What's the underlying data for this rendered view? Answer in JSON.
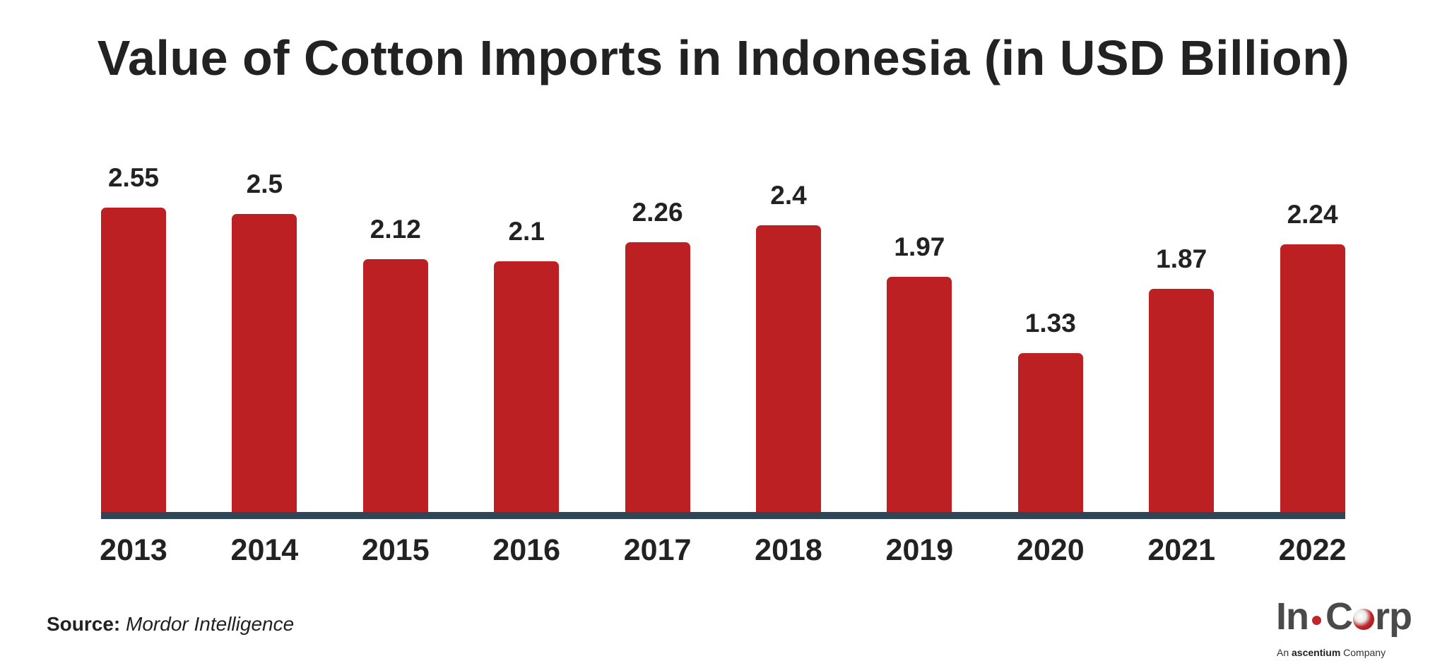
{
  "chart_data": {
    "type": "bar",
    "title": "Value of Cotton Imports in Indonesia (in USD Billion)",
    "xlabel": "",
    "ylabel": "",
    "categories": [
      "2013",
      "2014",
      "2015",
      "2016",
      "2017",
      "2018",
      "2019",
      "2020",
      "2021",
      "2022"
    ],
    "values": [
      2.55,
      2.5,
      2.12,
      2.1,
      2.26,
      2.4,
      1.97,
      1.33,
      1.87,
      2.24
    ],
    "value_labels": [
      "2.55",
      "2.5",
      "2.12",
      "2.1",
      "2.26",
      "2.4",
      "1.97",
      "1.33",
      "1.87",
      "2.24"
    ],
    "ylim": [
      0,
      2.6
    ],
    "grid": false,
    "legend": "none",
    "y_axis_visible": false,
    "data_labels": "above bars"
  },
  "colors": {
    "bar": "#BC2023",
    "axis": "#2F4558",
    "text": "#222222"
  },
  "footer": {
    "source_label": "Source:",
    "source_value": "Mordor Intelligence"
  },
  "logo": {
    "part1": "In",
    "part2": "C",
    "part3": "rp",
    "tagline_prefix": "An",
    "tagline_brand": "ascentium",
    "tagline_suffix": "Company"
  }
}
